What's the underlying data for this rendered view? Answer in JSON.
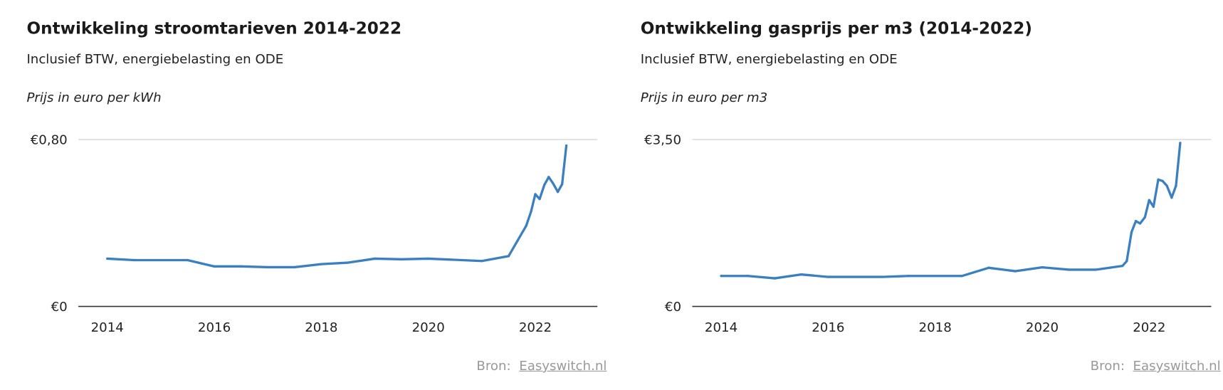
{
  "chart_data": [
    {
      "type": "line",
      "title": "Ontwikkeling stroomtarieven 2014-2022",
      "subtitle": "Inclusief BTW, energiebelasting en ODE",
      "ylabel": "Prijs in euro per kWh",
      "xlabel": "",
      "xlim": [
        2013.46,
        2023.16
      ],
      "ylim": [
        0,
        0.8
      ],
      "x_ticks": [
        "2014",
        "2016",
        "2018",
        "2020",
        "2022"
      ],
      "x_tick_values": [
        2014,
        2016,
        2018,
        2020,
        2022
      ],
      "y_ticks": [
        "€0",
        "€0,80"
      ],
      "y_tick_values": [
        0,
        0.8
      ],
      "grid": true,
      "color": "#3a7fc1",
      "source_label": "Bron:",
      "source_link": "Easyswitch.nl",
      "series": [
        {
          "x": [
            2014.0,
            2014.5,
            2015.5,
            2016.0,
            2016.5,
            2017.0,
            2017.5,
            2018.0,
            2018.5,
            2019.0,
            2019.5,
            2020.0,
            2021.0,
            2021.5,
            2021.83,
            2021.92,
            2022.0,
            2022.08,
            2022.17,
            2022.25,
            2022.33,
            2022.42,
            2022.5,
            2022.58
          ],
          "y": [
            0.229,
            0.222,
            0.222,
            0.192,
            0.192,
            0.188,
            0.188,
            0.203,
            0.21,
            0.229,
            0.226,
            0.229,
            0.218,
            0.241,
            0.387,
            0.455,
            0.538,
            0.515,
            0.583,
            0.62,
            0.59,
            0.549,
            0.586,
            0.771
          ]
        }
      ]
    },
    {
      "type": "line",
      "title": "Ontwikkeling gasprijs per m3 (2014-2022)",
      "subtitle": "Inclusief BTW, energiebelasting en ODE",
      "ylabel": "Prijs in euro per m3",
      "xlabel": "",
      "xlim": [
        2013.46,
        2023.16
      ],
      "ylim": [
        0,
        3.5
      ],
      "x_ticks": [
        "2014",
        "2016",
        "2018",
        "2020",
        "2022"
      ],
      "x_tick_values": [
        2014,
        2016,
        2018,
        2020,
        2022
      ],
      "y_ticks": [
        "€0",
        "€3,50"
      ],
      "y_tick_values": [
        0,
        3.5
      ],
      "grid": true,
      "color": "#3a7fc1",
      "source_label": "Bron:",
      "source_link": "Easyswitch.nl",
      "series": [
        {
          "x": [
            2014.0,
            2014.5,
            2015.0,
            2015.5,
            2016.0,
            2017.0,
            2017.5,
            2018.5,
            2019.0,
            2019.5,
            2020.0,
            2020.5,
            2021.0,
            2021.5,
            2021.58,
            2021.67,
            2021.75,
            2021.83,
            2021.92,
            2022.0,
            2022.08,
            2022.17,
            2022.25,
            2022.33,
            2022.42,
            2022.5,
            2022.58
          ],
          "y": [
            0.64,
            0.64,
            0.59,
            0.67,
            0.62,
            0.62,
            0.64,
            0.64,
            0.81,
            0.74,
            0.82,
            0.77,
            0.77,
            0.85,
            0.95,
            1.56,
            1.79,
            1.74,
            1.87,
            2.23,
            2.09,
            2.66,
            2.63,
            2.53,
            2.28,
            2.53,
            3.43
          ]
        }
      ]
    }
  ]
}
